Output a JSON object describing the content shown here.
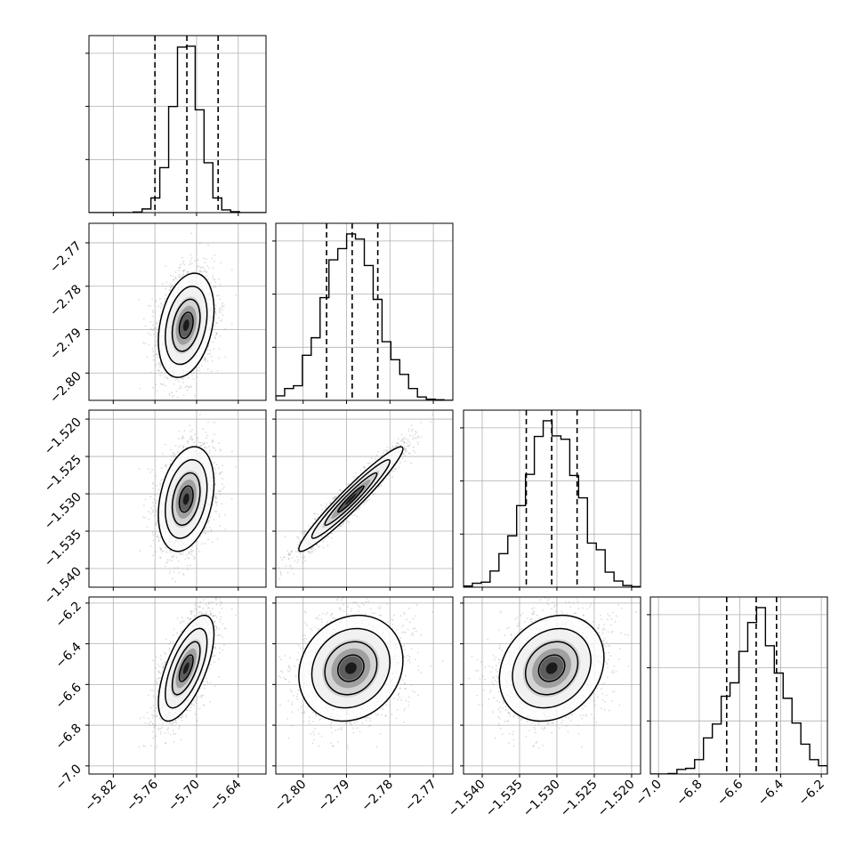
{
  "chart_data": {
    "type": "corner",
    "grid": true,
    "parameters": [
      {
        "samples": {
          "mean": -5.715,
          "sd": 0.02
        },
        "range": [
          -5.855,
          -5.6
        ],
        "ticks": [
          -5.82,
          -5.76,
          -5.7,
          -5.64
        ],
        "tick_labels": [
          "−5.82",
          "−5.76",
          "−5.70",
          "−5.64"
        ],
        "quantiles": [
          -5.76,
          -5.714,
          -5.669
        ]
      },
      {
        "samples": {
          "mean": -2.789,
          "sd": 0.006
        },
        "range": [
          -2.8063,
          -2.7655
        ],
        "ticks": [
          -2.8,
          -2.79,
          -2.78,
          -2.77
        ],
        "tick_labels": [
          "−2.80",
          "−2.79",
          "−2.78",
          "−2.77"
        ],
        "quantiles": [
          -2.7946,
          -2.7887,
          -2.7828
        ]
      },
      {
        "samples": {
          "mean": -1.5307,
          "sd": 0.0035
        },
        "range": [
          -1.5425,
          -1.5188
        ],
        "ticks": [
          -1.54,
          -1.535,
          -1.53,
          -1.525,
          -1.52
        ],
        "tick_labels": [
          "−1.540",
          "−1.535",
          "−1.530",
          "−1.525",
          "−1.520"
        ],
        "quantiles": [
          -1.5341,
          -1.5307,
          -1.5273
        ]
      },
      {
        "samples": {
          "mean": -6.52,
          "sd": 0.13
        },
        "range": [
          -7.04,
          -6.17
        ],
        "ticks": [
          -7.0,
          -6.8,
          -6.6,
          -6.4,
          -6.2
        ],
        "tick_labels": [
          "−7.0",
          "−6.8",
          "−6.6",
          "−6.4",
          "−6.2"
        ],
        "quantiles": [
          -6.665,
          -6.52,
          -6.42
        ]
      }
    ],
    "correlations": [
      [
        1.0,
        0.3,
        0.3,
        0.65
      ],
      [
        0.3,
        1.0,
        0.96,
        0.15
      ],
      [
        0.3,
        0.96,
        1.0,
        0.2
      ],
      [
        0.65,
        0.15,
        0.2,
        1.0
      ]
    ],
    "histogram_bins": 20,
    "quantile_levels": [
      0.16,
      0.5,
      0.84
    ]
  }
}
